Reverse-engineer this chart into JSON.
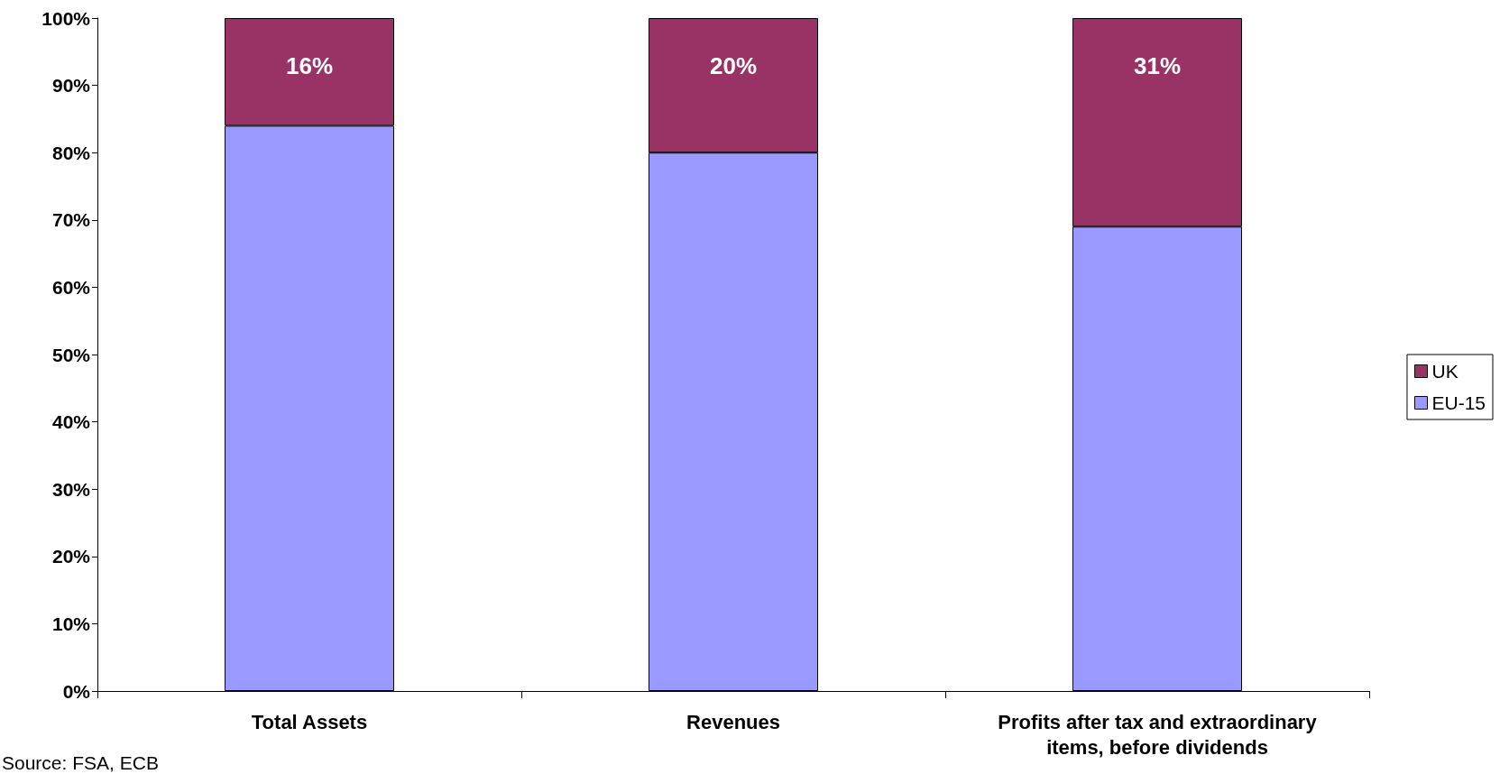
{
  "chart_data": {
    "type": "bar",
    "stacked": true,
    "categories": [
      "Total Assets",
      "Revenues",
      "Profits after tax and extraordinary\nitems, before dividends"
    ],
    "series": [
      {
        "name": "EU-15",
        "color": "#9999ff",
        "values": [
          84,
          80,
          69
        ]
      },
      {
        "name": "UK",
        "color": "#993366",
        "values": [
          16,
          20,
          31
        ],
        "value_labels": [
          "16%",
          "20%",
          "31%"
        ]
      }
    ],
    "ylim": [
      0,
      100
    ],
    "yticks": [
      {
        "value": 0,
        "label": "0%"
      },
      {
        "value": 10,
        "label": "10%"
      },
      {
        "value": 20,
        "label": "20%"
      },
      {
        "value": 30,
        "label": "30%"
      },
      {
        "value": 40,
        "label": "40%"
      },
      {
        "value": 50,
        "label": "50%"
      },
      {
        "value": 60,
        "label": "60%"
      },
      {
        "value": 70,
        "label": "70%"
      },
      {
        "value": 80,
        "label": "80%"
      },
      {
        "value": 90,
        "label": "90%"
      },
      {
        "value": 100,
        "label": "100%"
      }
    ],
    "grid": false,
    "legend": "right",
    "annotations": [
      "Source: FSA, ECB"
    ]
  }
}
